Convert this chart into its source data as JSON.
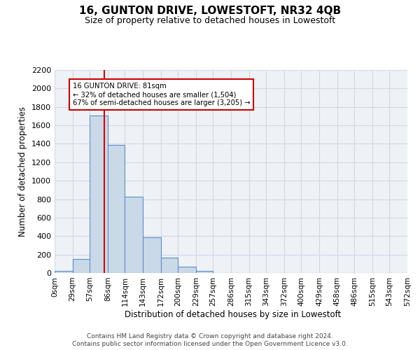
{
  "title": "16, GUNTON DRIVE, LOWESTOFT, NR32 4QB",
  "subtitle": "Size of property relative to detached houses in Lowestoft",
  "xlabel": "Distribution of detached houses by size in Lowestoft",
  "ylabel": "Number of detached properties",
  "bin_edges": [
    0,
    29,
    57,
    86,
    114,
    143,
    172,
    200,
    229,
    257,
    286,
    315,
    343,
    372,
    400,
    429,
    458,
    486,
    515,
    543,
    572
  ],
  "bin_labels": [
    "0sqm",
    "29sqm",
    "57sqm",
    "86sqm",
    "114sqm",
    "143sqm",
    "172sqm",
    "200sqm",
    "229sqm",
    "257sqm",
    "286sqm",
    "315sqm",
    "343sqm",
    "372sqm",
    "400sqm",
    "429sqm",
    "458sqm",
    "486sqm",
    "515sqm",
    "543sqm",
    "572sqm"
  ],
  "bar_heights": [
    20,
    155,
    1710,
    1390,
    825,
    385,
    165,
    65,
    25,
    0,
    0,
    0,
    0,
    0,
    0,
    0,
    0,
    0,
    0,
    0
  ],
  "bar_facecolor": "#c9d9e8",
  "bar_edgecolor": "#5b8fc9",
  "grid_color": "#d0d8e4",
  "vline_x": 81,
  "vline_color": "#dd0000",
  "annotation_text": "16 GUNTON DRIVE: 81sqm\n← 32% of detached houses are smaller (1,504)\n67% of semi-detached houses are larger (3,205) →",
  "annotation_box_facecolor": "#ffffff",
  "annotation_box_edgecolor": "#cc0000",
  "ylim": [
    0,
    2200
  ],
  "yticks": [
    0,
    200,
    400,
    600,
    800,
    1000,
    1200,
    1400,
    1600,
    1800,
    2000,
    2200
  ],
  "footer_line1": "Contains HM Land Registry data © Crown copyright and database right 2024.",
  "footer_line2": "Contains public sector information licensed under the Open Government Licence v3.0.",
  "background_color": "#ffffff",
  "plot_bg_color": "#eef2f7"
}
